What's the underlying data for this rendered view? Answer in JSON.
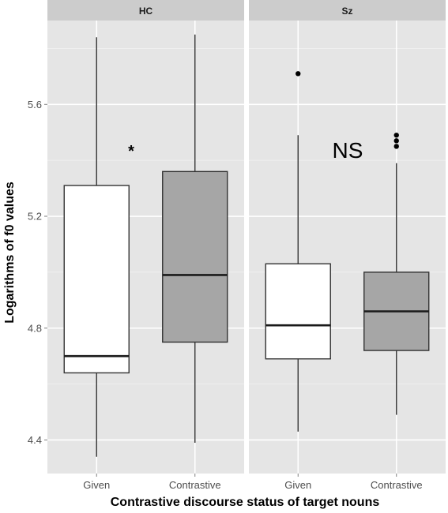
{
  "chart_data": {
    "type": "boxplot",
    "xlabel": "Contrastive discourse status of target nouns",
    "ylabel": "Logarithms of f0 values",
    "ylim": [
      4.28,
      5.9
    ],
    "yticks": [
      4.4,
      4.8,
      5.2,
      5.6
    ],
    "grid": true,
    "legend": "none",
    "categories": [
      "Given",
      "Contrastive"
    ],
    "panels": [
      {
        "facet": "HC",
        "annotation": "*",
        "boxes": [
          {
            "category": "Given",
            "whisker_low": 4.34,
            "q1": 4.64,
            "median": 4.7,
            "q3": 5.31,
            "whisker_high": 5.84,
            "outliers": [],
            "fill": "#ffffff"
          },
          {
            "category": "Contrastive",
            "whisker_low": 4.39,
            "q1": 4.75,
            "median": 4.99,
            "q3": 5.36,
            "whisker_high": 5.85,
            "outliers": [],
            "fill": "#a6a6a6"
          }
        ]
      },
      {
        "facet": "Sz",
        "annotation": "NS",
        "boxes": [
          {
            "category": "Given",
            "whisker_low": 4.43,
            "q1": 4.69,
            "median": 4.81,
            "q3": 5.03,
            "whisker_high": 5.49,
            "outliers": [
              5.71
            ],
            "fill": "#ffffff"
          },
          {
            "category": "Contrastive",
            "whisker_low": 4.49,
            "q1": 4.72,
            "median": 4.86,
            "q3": 5.0,
            "whisker_high": 5.39,
            "outliers": [
              5.45,
              5.47,
              5.49
            ],
            "fill": "#a6a6a6"
          }
        ]
      }
    ]
  },
  "colors": {
    "panel_background": "#e5e5e5",
    "strip_background": "#cccccc",
    "gridline": "#ffffff",
    "box_outline": "#333333",
    "given_fill": "#ffffff",
    "contrastive_fill": "#a6a6a6"
  }
}
